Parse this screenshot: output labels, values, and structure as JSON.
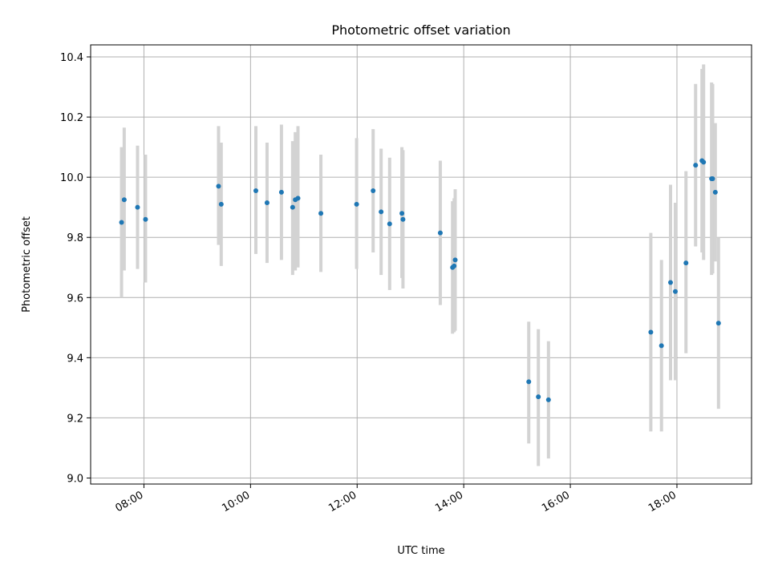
{
  "chart_data": {
    "type": "scatter",
    "title": "Photometric offset variation",
    "xlabel": "UTC time",
    "ylabel": "Photometric offset",
    "x_unit": "hours (UTC)",
    "xlim": [
      7.0,
      19.4
    ],
    "ylim": [
      8.98,
      10.44
    ],
    "x_ticks": [
      8,
      10,
      12,
      14,
      16,
      18
    ],
    "x_tick_labels": [
      "08:00",
      "10:00",
      "12:00",
      "14:00",
      "16:00",
      "18:00"
    ],
    "y_ticks": [
      9.0,
      9.2,
      9.4,
      9.6,
      9.8,
      10.0,
      10.2,
      10.4
    ],
    "y_tick_labels": [
      "9.0",
      "9.2",
      "9.4",
      "9.6",
      "9.8",
      "10.0",
      "10.2",
      "10.4"
    ],
    "grid": true,
    "marker_color": "#1f77b4",
    "errorbar_color": "#d3d3d3",
    "points": [
      {
        "x": 7.58,
        "y": 9.85,
        "lo": 9.6,
        "hi": 10.1
      },
      {
        "x": 7.63,
        "y": 9.925,
        "lo": 9.69,
        "hi": 10.165
      },
      {
        "x": 7.88,
        "y": 9.9,
        "lo": 9.695,
        "hi": 10.105
      },
      {
        "x": 8.03,
        "y": 9.86,
        "lo": 9.65,
        "hi": 10.075
      },
      {
        "x": 9.4,
        "y": 9.97,
        "lo": 9.775,
        "hi": 10.17
      },
      {
        "x": 9.45,
        "y": 9.91,
        "lo": 9.705,
        "hi": 10.115
      },
      {
        "x": 10.1,
        "y": 9.955,
        "lo": 9.745,
        "hi": 10.17
      },
      {
        "x": 10.31,
        "y": 9.915,
        "lo": 9.715,
        "hi": 10.115
      },
      {
        "x": 10.58,
        "y": 9.95,
        "lo": 9.725,
        "hi": 10.175
      },
      {
        "x": 10.79,
        "y": 9.9,
        "lo": 9.675,
        "hi": 10.12
      },
      {
        "x": 10.84,
        "y": 9.925,
        "lo": 9.69,
        "hi": 10.15
      },
      {
        "x": 10.89,
        "y": 9.93,
        "lo": 9.7,
        "hi": 10.17
      },
      {
        "x": 11.32,
        "y": 9.88,
        "lo": 9.685,
        "hi": 10.075
      },
      {
        "x": 11.99,
        "y": 9.91,
        "lo": 9.695,
        "hi": 10.13
      },
      {
        "x": 12.3,
        "y": 9.955,
        "lo": 9.75,
        "hi": 10.16
      },
      {
        "x": 12.45,
        "y": 9.885,
        "lo": 9.675,
        "hi": 10.095
      },
      {
        "x": 12.61,
        "y": 9.845,
        "lo": 9.625,
        "hi": 10.065
      },
      {
        "x": 12.84,
        "y": 9.88,
        "lo": 9.665,
        "hi": 10.1
      },
      {
        "x": 12.86,
        "y": 9.86,
        "lo": 9.63,
        "hi": 10.09
      },
      {
        "x": 13.56,
        "y": 9.815,
        "lo": 9.575,
        "hi": 10.055
      },
      {
        "x": 13.79,
        "y": 9.7,
        "lo": 9.48,
        "hi": 9.92
      },
      {
        "x": 13.82,
        "y": 9.705,
        "lo": 9.485,
        "hi": 9.93
      },
      {
        "x": 13.84,
        "y": 9.725,
        "lo": 9.49,
        "hi": 9.96
      },
      {
        "x": 15.22,
        "y": 9.32,
        "lo": 9.115,
        "hi": 9.52
      },
      {
        "x": 15.4,
        "y": 9.27,
        "lo": 9.04,
        "hi": 9.495
      },
      {
        "x": 15.59,
        "y": 9.26,
        "lo": 9.065,
        "hi": 9.455
      },
      {
        "x": 17.51,
        "y": 9.485,
        "lo": 9.155,
        "hi": 9.815
      },
      {
        "x": 17.71,
        "y": 9.44,
        "lo": 9.155,
        "hi": 9.725
      },
      {
        "x": 17.88,
        "y": 9.65,
        "lo": 9.325,
        "hi": 9.975
      },
      {
        "x": 17.97,
        "y": 9.62,
        "lo": 9.325,
        "hi": 9.915
      },
      {
        "x": 18.17,
        "y": 9.715,
        "lo": 9.415,
        "hi": 10.02
      },
      {
        "x": 18.35,
        "y": 10.04,
        "lo": 9.77,
        "hi": 10.31
      },
      {
        "x": 18.47,
        "y": 10.055,
        "lo": 9.75,
        "hi": 10.36
      },
      {
        "x": 18.5,
        "y": 10.05,
        "lo": 9.725,
        "hi": 10.375
      },
      {
        "x": 18.65,
        "y": 9.995,
        "lo": 9.675,
        "hi": 10.315
      },
      {
        "x": 18.67,
        "y": 9.995,
        "lo": 9.68,
        "hi": 10.31
      },
      {
        "x": 18.72,
        "y": 9.95,
        "lo": 9.72,
        "hi": 10.18
      },
      {
        "x": 18.78,
        "y": 9.515,
        "lo": 9.23,
        "hi": 9.8
      }
    ]
  }
}
